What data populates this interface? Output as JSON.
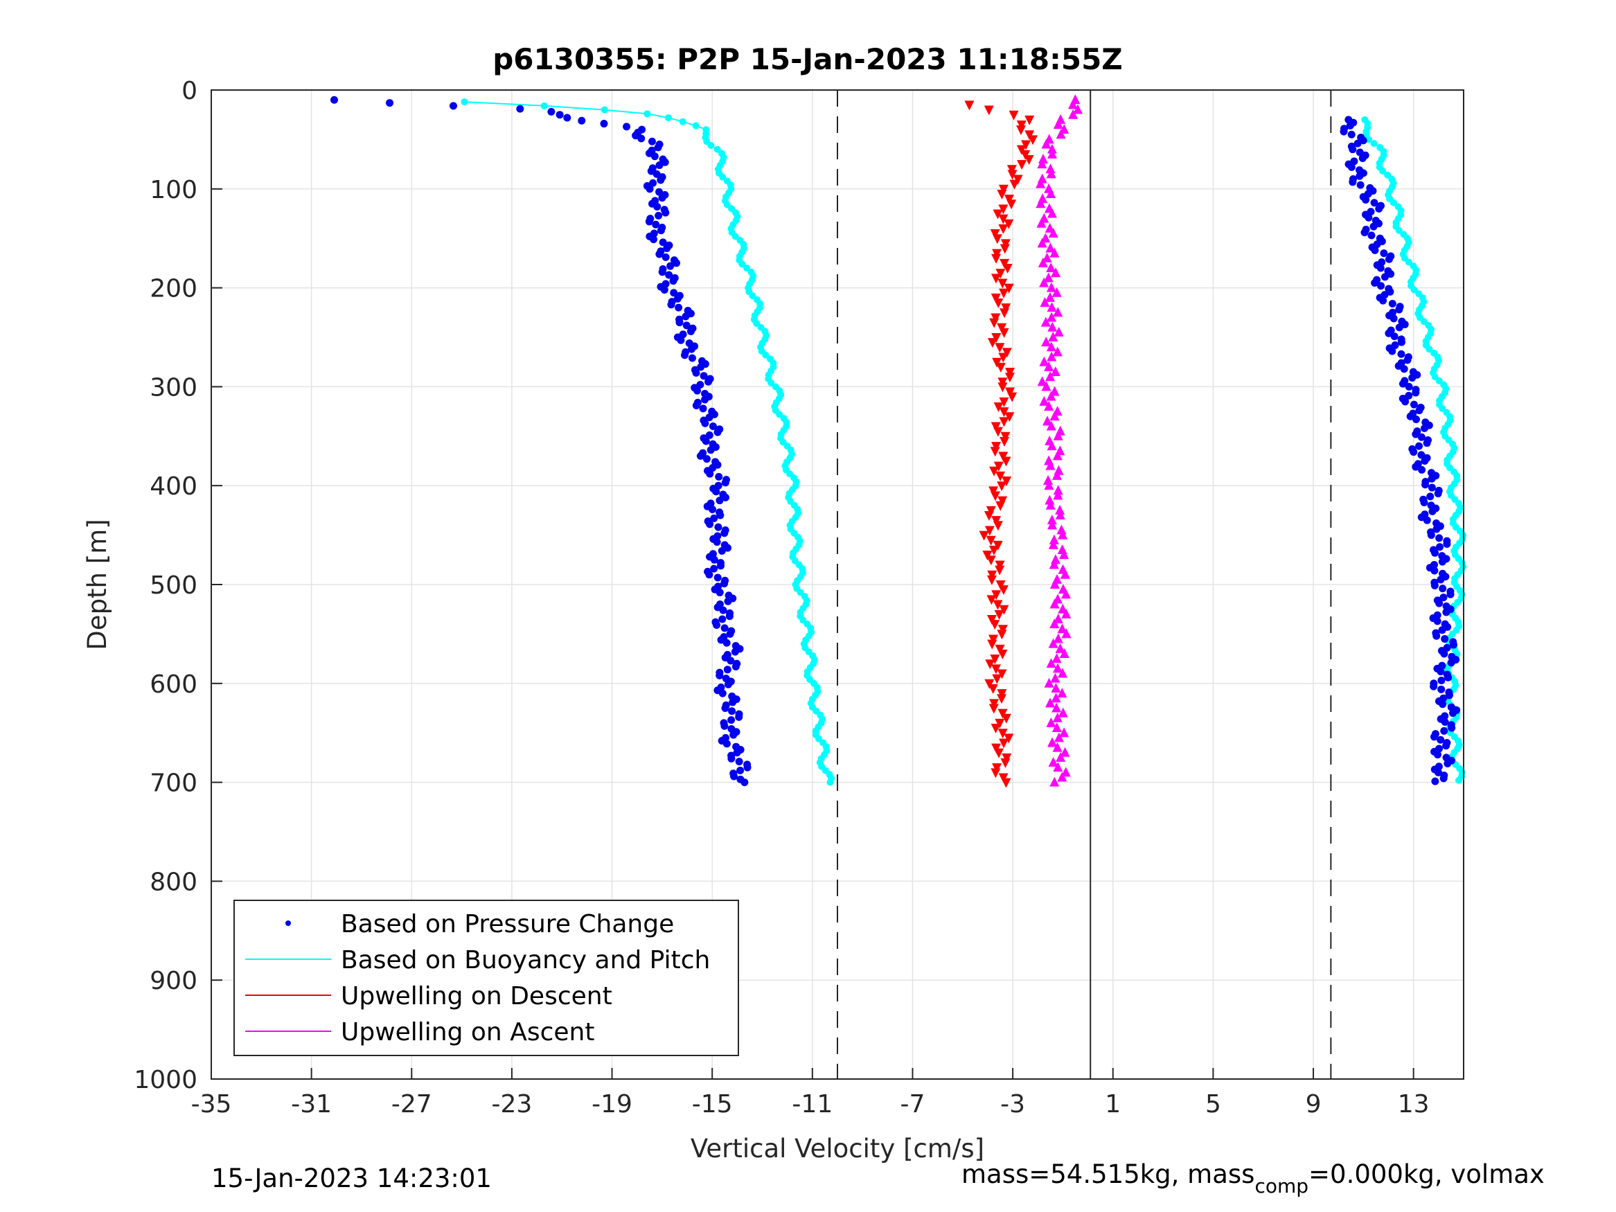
{
  "chart_data": {
    "type": "scatter",
    "title": "p6130355: P2P 15-Jan-2023 11:18:55Z",
    "xlabel": "Vertical Velocity [cm/s]",
    "ylabel": "Depth [m]",
    "xlim": [
      -35,
      15
    ],
    "ylim": [
      0,
      1000
    ],
    "y_reversed": true,
    "xticks": [
      "-35",
      "-31",
      "-27",
      "-23",
      "-19",
      "-15",
      "-11",
      "-7",
      "-3",
      "1",
      "5",
      "9",
      "13"
    ],
    "yticks": [
      "0",
      "100",
      "200",
      "300",
      "400",
      "500",
      "600",
      "700",
      "800",
      "900",
      "1000"
    ],
    "grid": true,
    "legend_position": "bottom-left",
    "reference_lines": {
      "dashed": [
        -10,
        9.7
      ],
      "solid": [
        0.1
      ]
    },
    "series": [
      {
        "name": "Based on Pressure Change",
        "style": "dots",
        "color": "#0000ee",
        "descent": {
          "depth": [
            10,
            20,
            30,
            40,
            60,
            80,
            100,
            130,
            160,
            200,
            240,
            280,
            320,
            360,
            400,
            440,
            480,
            520,
            560,
            600,
            640,
            680,
            700
          ],
          "velocity": [
            -30,
            -22,
            -20,
            -18,
            -17.4,
            -17.0,
            -17.3,
            -17.2,
            -17.0,
            -16.6,
            -16.1,
            -15.6,
            -15.2,
            -15.1,
            -14.8,
            -14.8,
            -14.8,
            -14.6,
            -14.3,
            -14.4,
            -14.3,
            -14.0,
            -14.0
          ]
        },
        "ascent": {
          "depth": [
            700,
            680,
            640,
            600,
            560,
            520,
            480,
            440,
            400,
            360,
            320,
            280,
            240,
            200,
            160,
            120,
            80,
            50,
            30
          ],
          "velocity": [
            13.8,
            14.1,
            14.3,
            14.2,
            14.3,
            14.1,
            14.1,
            13.8,
            13.6,
            13.3,
            13.1,
            12.6,
            12.3,
            11.9,
            11.6,
            11.3,
            10.8,
            10.6,
            10.4
          ]
        }
      },
      {
        "name": "Based on Buoyancy and Pitch",
        "style": "line+dots",
        "color": "#00ffff",
        "descent": {
          "depth": [
            12,
            18,
            25,
            40,
            60,
            100,
            150,
            200,
            250,
            300,
            350,
            400,
            450,
            500,
            550,
            600,
            650,
            700
          ],
          "velocity": [
            -25,
            -20,
            -17,
            -15.4,
            -14.8,
            -14.4,
            -14.0,
            -13.4,
            -13.0,
            -12.5,
            -12.1,
            -11.8,
            -11.7,
            -11.5,
            -11.2,
            -11.0,
            -10.7,
            -10.4
          ]
        },
        "ascent": {
          "depth": [
            700,
            650,
            600,
            550,
            500,
            450,
            400,
            350,
            300,
            250,
            200,
            150,
            100,
            60,
            30
          ],
          "velocity": [
            14.8,
            14.6,
            14.5,
            14.6,
            14.8,
            14.8,
            14.6,
            14.4,
            14.1,
            13.6,
            13.1,
            12.6,
            12.1,
            11.6,
            10.9
          ]
        }
      },
      {
        "name": "Upwelling on Descent",
        "style": "triangle-down",
        "color": "#ff0000",
        "depth": [
          15,
          30,
          60,
          100,
          150,
          200,
          250,
          300,
          350,
          400,
          450,
          500,
          550,
          600,
          650,
          700
        ],
        "velocity": [
          -4.5,
          -2.5,
          -2.4,
          -3.2,
          -3.5,
          -3.4,
          -3.6,
          -3.2,
          -3.5,
          -3.5,
          -3.9,
          -3.6,
          -3.6,
          -3.7,
          -3.4,
          -3.5
        ]
      },
      {
        "name": "Upwelling on Ascent",
        "style": "triangle-up",
        "color": "#ff00ff",
        "depth": [
          10,
          30,
          60,
          100,
          150,
          200,
          250,
          300,
          350,
          400,
          450,
          500,
          550,
          600,
          650,
          700
        ],
        "velocity": [
          -0.3,
          -0.9,
          -1.6,
          -1.7,
          -1.6,
          -1.5,
          -1.4,
          -1.6,
          -1.3,
          -1.4,
          -1.2,
          -1.1,
          -1.1,
          -1.3,
          -1.2,
          -1.1
        ]
      }
    ]
  },
  "footer": {
    "date": "15-Jan-2023 14:23:01",
    "mass_prefix": "mass=54.515kg, mass",
    "mass_sub": "comp",
    "mass_suffix": "=0.000kg, volmax"
  },
  "colors": {
    "pressure": "#0000ee",
    "buoyancy": "#00ffff",
    "descent": "#ff0000",
    "ascent": "#ff00ff"
  }
}
